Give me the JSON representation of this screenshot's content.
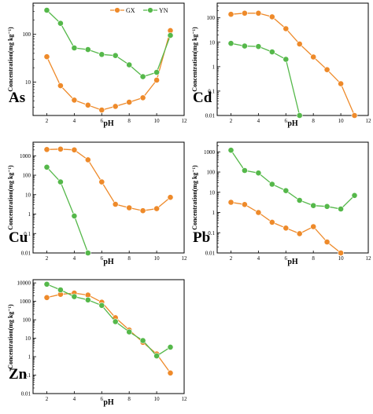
{
  "legend": [
    "GX",
    "YN"
  ],
  "colors": {
    "GX": "#ee8a2a",
    "YN": "#55b84a"
  },
  "chart_data": [
    {
      "type": "line",
      "element": "As",
      "xlabel": "pH",
      "ylabel": "Concentration(mg kg⁻¹)",
      "xlim": [
        1,
        12
      ],
      "xticks": [
        2,
        4,
        6,
        8,
        10,
        12
      ],
      "yscale": "log",
      "ylim": [
        2,
        450
      ],
      "yticks": [
        {
          "v": 10,
          "label": "10"
        },
        {
          "v": 100,
          "label": "100"
        }
      ],
      "x": [
        2,
        3,
        4,
        5,
        6,
        7,
        8,
        9,
        10,
        11
      ],
      "series": [
        {
          "name": "GX",
          "values": [
            34,
            8.4,
            4.2,
            3.3,
            2.6,
            3.1,
            3.8,
            4.7,
            11,
            120
          ]
        },
        {
          "name": "YN",
          "values": [
            320,
            170,
            52,
            48,
            38,
            36,
            23,
            13,
            16,
            95
          ]
        }
      ]
    },
    {
      "type": "line",
      "element": "Cd",
      "xlabel": "pH",
      "ylabel": "Concentration(mg kg⁻¹)",
      "xlim": [
        1,
        12
      ],
      "xticks": [
        2,
        4,
        6,
        8,
        10,
        12
      ],
      "yscale": "log",
      "ylim": [
        0.01,
        400
      ],
      "yticks": [
        {
          "v": 0.01,
          "label": "0.01"
        },
        {
          "v": 0.1,
          "label": "0.1"
        },
        {
          "v": 1,
          "label": "1"
        },
        {
          "v": 10,
          "label": "10"
        },
        {
          "v": 100,
          "label": "100"
        }
      ],
      "x": [
        2,
        3,
        4,
        5,
        6,
        7,
        8,
        9,
        10,
        11
      ],
      "series": [
        {
          "name": "GX",
          "values": [
            140,
            155,
            155,
            110,
            36,
            8.5,
            2.5,
            0.75,
            0.2,
            0.01
          ]
        },
        {
          "name": "YN",
          "x": [
            2,
            3,
            4,
            5,
            6,
            7
          ],
          "values": [
            9,
            7,
            6.7,
            4,
            2,
            0.01
          ]
        }
      ]
    },
    {
      "type": "line",
      "element": "Cu",
      "xlabel": "pH",
      "ylabel": "Concentration(mg kg⁻¹)",
      "xlim": [
        1,
        12
      ],
      "xticks": [
        2,
        4,
        6,
        8,
        10,
        12
      ],
      "yscale": "log",
      "ylim": [
        0.01,
        5000
      ],
      "yticks": [
        {
          "v": 0.01,
          "label": "0.01"
        },
        {
          "v": 0.1,
          "label": "0.1"
        },
        {
          "v": 1,
          "label": "1"
        },
        {
          "v": 10,
          "label": "10"
        },
        {
          "v": 100,
          "label": "100"
        },
        {
          "v": 1000,
          "label": "1000"
        }
      ],
      "x": [
        2,
        3,
        4,
        5,
        6,
        7,
        8,
        9,
        10,
        11
      ],
      "series": [
        {
          "name": "GX",
          "values": [
            2100,
            2200,
            2000,
            620,
            45,
            3.2,
            2.1,
            1.5,
            1.9,
            7.3
          ]
        },
        {
          "name": "YN",
          "x": [
            2,
            3,
            4,
            5
          ],
          "values": [
            260,
            45,
            0.8,
            0.01
          ]
        }
      ]
    },
    {
      "type": "line",
      "element": "Pb",
      "xlabel": "pH",
      "ylabel": "Concentration(mg kg⁻¹)",
      "xlim": [
        1,
        12
      ],
      "xticks": [
        2,
        4,
        6,
        8,
        10,
        12
      ],
      "yscale": "log",
      "ylim": [
        0.01,
        3000
      ],
      "yticks": [
        {
          "v": 0.01,
          "label": "0.01"
        },
        {
          "v": 0.1,
          "label": "0.1"
        },
        {
          "v": 1,
          "label": "1"
        },
        {
          "v": 10,
          "label": "10"
        },
        {
          "v": 100,
          "label": "100"
        },
        {
          "v": 1000,
          "label": "1000"
        }
      ],
      "x": [
        2,
        3,
        4,
        5,
        6,
        7,
        8,
        9,
        10,
        11
      ],
      "series": [
        {
          "name": "GX",
          "x": [
            2,
            3,
            4,
            5,
            6,
            7,
            8,
            9,
            10
          ],
          "values": [
            3.2,
            2.5,
            1,
            0.33,
            0.17,
            0.09,
            0.2,
            0.035,
            0.01
          ]
        },
        {
          "name": "YN",
          "values": [
            1200,
            120,
            90,
            25,
            12,
            4,
            2.2,
            2,
            1.5,
            7
          ]
        }
      ]
    },
    {
      "type": "line",
      "element": "Zn",
      "xlabel": "pH",
      "ylabel": "Concentration(mg kg⁻¹)",
      "xlim": [
        1,
        12
      ],
      "xticks": [
        2,
        4,
        6,
        8,
        10,
        12
      ],
      "yscale": "log",
      "ylim": [
        0.01,
        15000
      ],
      "yticks": [
        {
          "v": 0.01,
          "label": "0.01"
        },
        {
          "v": 0.1,
          "label": "0.1"
        },
        {
          "v": 1,
          "label": "1"
        },
        {
          "v": 10,
          "label": "10"
        },
        {
          "v": 100,
          "label": "100"
        },
        {
          "v": 1000,
          "label": "1000"
        },
        {
          "v": 10000,
          "label": "10000"
        }
      ],
      "x": [
        2,
        3,
        4,
        5,
        6,
        7,
        8,
        9,
        10,
        11
      ],
      "series": [
        {
          "name": "GX",
          "values": [
            1600,
            2400,
            2800,
            2200,
            900,
            130,
            28,
            6,
            1.4,
            0.13
          ]
        },
        {
          "name": "YN",
          "values": [
            8500,
            4200,
            1800,
            1200,
            600,
            80,
            22,
            7.5,
            1.1,
            3.3
          ]
        }
      ]
    }
  ]
}
